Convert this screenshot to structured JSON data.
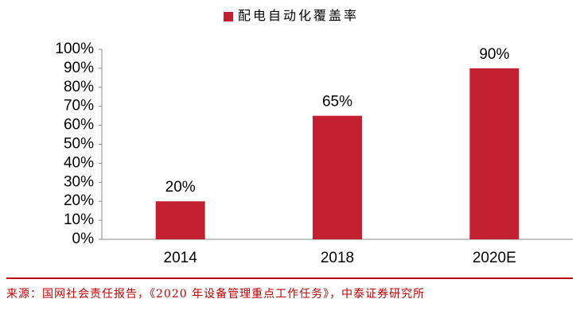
{
  "chart_data": {
    "type": "bar",
    "legend": "配电自动化覆盖率",
    "categories": [
      "2014",
      "2018",
      "2020E"
    ],
    "values": [
      20,
      65,
      90
    ],
    "value_labels": [
      "20%",
      "65%",
      "90%"
    ],
    "color": "#c21f30",
    "ylim": [
      0,
      100
    ],
    "yticks": [
      {
        "value": 0,
        "label": "0%"
      },
      {
        "value": 10,
        "label": "10%"
      },
      {
        "value": 20,
        "label": "20%"
      },
      {
        "value": 30,
        "label": "30%"
      },
      {
        "value": 40,
        "label": "40%"
      },
      {
        "value": 50,
        "label": "50%"
      },
      {
        "value": 60,
        "label": "60%"
      },
      {
        "value": 70,
        "label": "70%"
      },
      {
        "value": 80,
        "label": "80%"
      },
      {
        "value": 90,
        "label": "90%"
      },
      {
        "value": 100,
        "label": "100%"
      }
    ],
    "grid": false,
    "source": "来源：国网社会责任报告，《2020 年设备管理重点工作任务》，中泰证券研究所"
  }
}
